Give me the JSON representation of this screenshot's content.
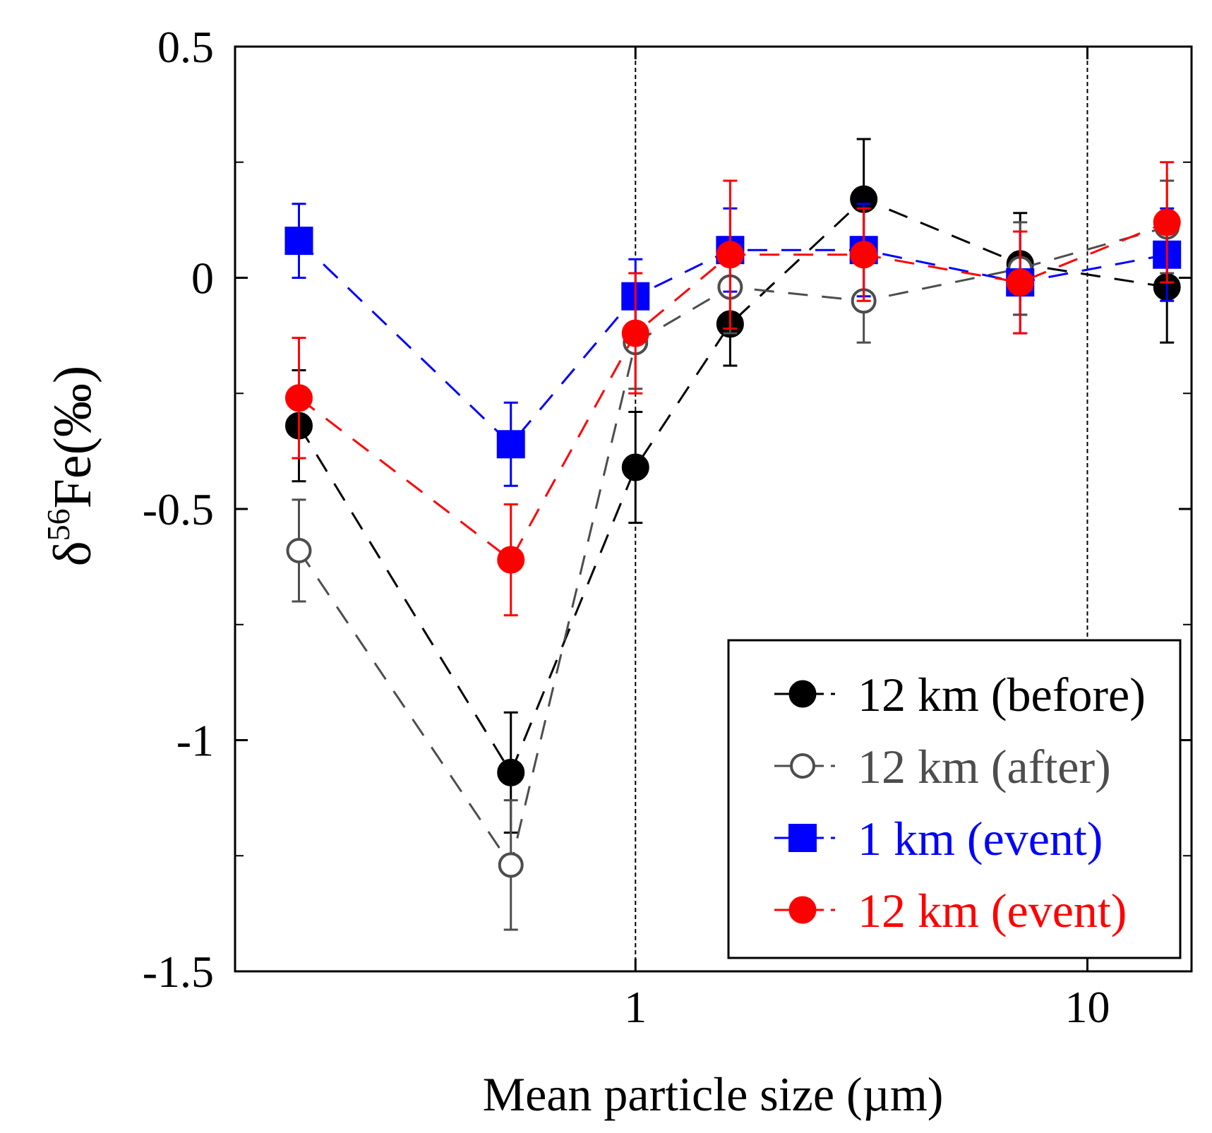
{
  "chart_data": {
    "type": "scatter",
    "title": "",
    "xlabel": "Mean particle size (µm)",
    "ylabel_prefix": "δ",
    "ylabel_superscript": "56",
    "ylabel_main": "Fe(‰)",
    "xscale": "log",
    "xlim": [
      0.13,
      17
    ],
    "ylim": [
      -1.5,
      0.5
    ],
    "x_ticks": [
      1,
      10
    ],
    "x_tick_labels": [
      "1",
      "10"
    ],
    "y_ticks": [
      0.5,
      0,
      -0.5,
      -1,
      -1.5
    ],
    "y_tick_labels": [
      "0.5",
      "0",
      "-0.5",
      "-1",
      "-1.5"
    ],
    "y_minor_ticks": [
      0.25,
      -0.25,
      -0.75,
      -1.25
    ],
    "vertical_reference_lines": [
      1,
      10
    ],
    "legend_position": "bottom-right",
    "series": [
      {
        "name": "12 km (before)",
        "color": "#000000",
        "marker": "filled-circle",
        "x": [
          0.18,
          0.53,
          1.0,
          1.62,
          3.2,
          7.1,
          15.0
        ],
        "y": [
          -0.32,
          -1.07,
          -0.41,
          -0.1,
          0.17,
          0.03,
          -0.02
        ],
        "err": [
          0.12,
          0.13,
          0.12,
          0.09,
          0.13,
          0.11,
          0.12
        ]
      },
      {
        "name": "12 km (after)",
        "color": "#4d4d4d",
        "marker": "open-circle",
        "x": [
          0.18,
          0.53,
          1.0,
          1.62,
          3.2,
          7.1,
          15.0
        ],
        "y": [
          -0.59,
          -1.27,
          -0.14,
          -0.02,
          -0.05,
          0.02,
          0.11
        ],
        "err": [
          0.11,
          0.14,
          0.1,
          0.1,
          0.09,
          0.1,
          0.1
        ]
      },
      {
        "name": "1 km (event)",
        "color": "#0000ff",
        "marker": "filled-square",
        "x": [
          0.18,
          0.53,
          1.0,
          1.62,
          3.2,
          7.1,
          15.0
        ],
        "y": [
          0.08,
          -0.36,
          -0.04,
          0.06,
          0.06,
          -0.01,
          0.05
        ],
        "err": [
          0.08,
          0.09,
          0.08,
          0.09,
          0.1,
          0.11,
          0.1
        ]
      },
      {
        "name": "12 km (event)",
        "color": "#ff0000",
        "marker": "filled-circle",
        "x": [
          0.18,
          0.53,
          1.0,
          1.62,
          3.2,
          7.1,
          15.0
        ],
        "y": [
          -0.26,
          -0.61,
          -0.12,
          0.05,
          0.05,
          -0.01,
          0.12
        ],
        "err": [
          0.13,
          0.12,
          0.13,
          0.16,
          0.1,
          0.11,
          0.13
        ]
      }
    ]
  }
}
